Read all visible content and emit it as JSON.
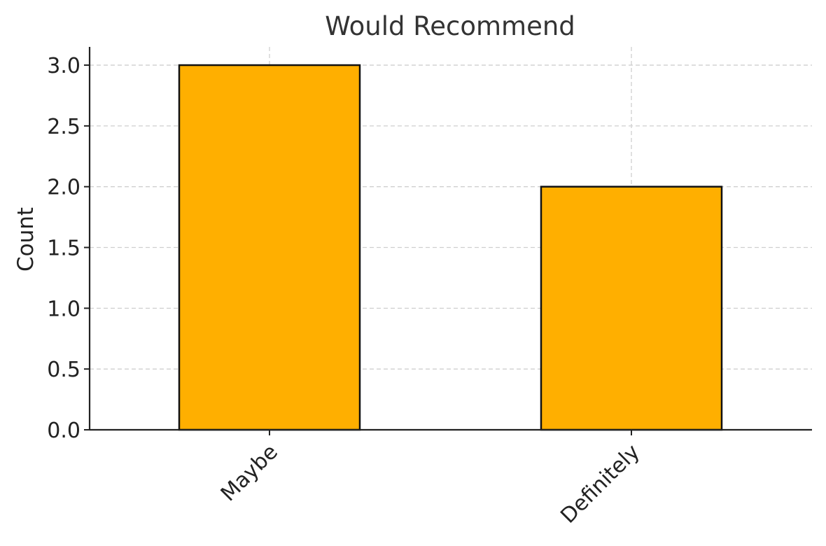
{
  "chart_data": {
    "type": "bar",
    "title": "Would Recommend",
    "xlabel": "",
    "ylabel": "Count",
    "categories": [
      "Maybe",
      "Definitely"
    ],
    "values": [
      3,
      2
    ],
    "ylim": [
      0,
      3.15
    ],
    "yticks": [
      0,
      0.5,
      1.0,
      1.5,
      2.0,
      2.5,
      3.0
    ],
    "ytick_labels": [
      "0.0",
      "0.5",
      "1.0",
      "1.5",
      "2.0",
      "2.5",
      "3.0"
    ],
    "grid": true,
    "legend": "none",
    "bar_color": "#FFAF00",
    "bar_edge_color": "#111111"
  }
}
